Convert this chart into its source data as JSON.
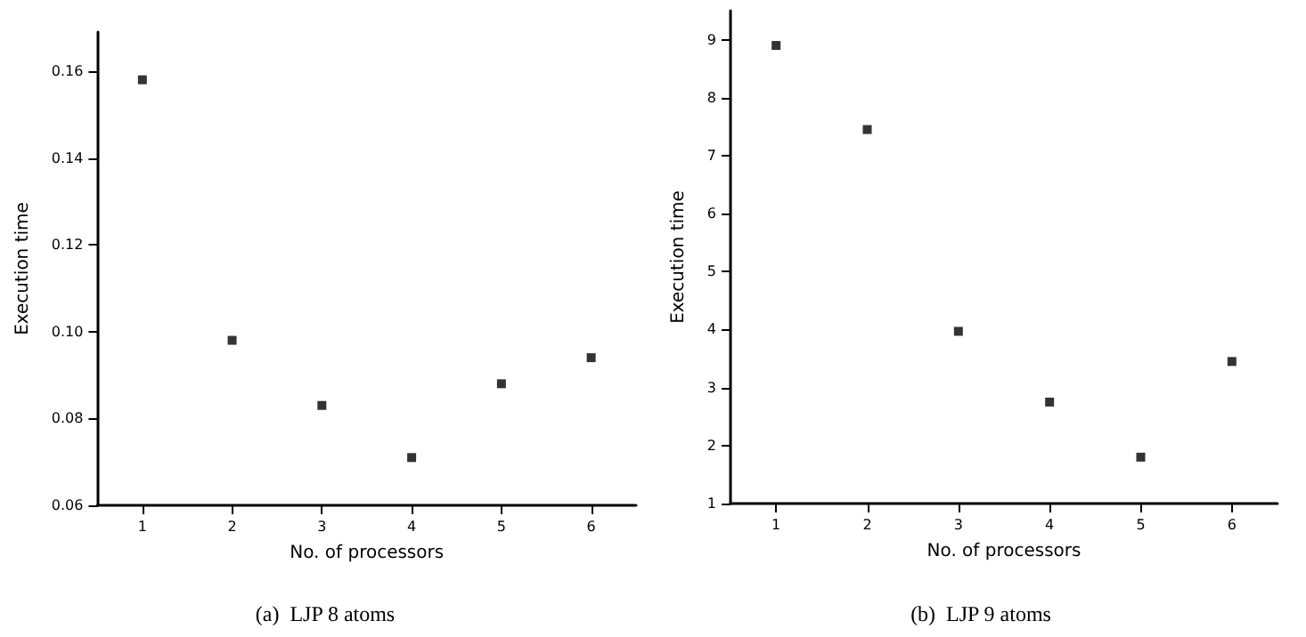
{
  "chart_data": [
    {
      "type": "scatter",
      "title": "(a)  LJP 8 atoms",
      "xlabel": "No. of processors",
      "ylabel": "Execution time",
      "x": [
        1,
        2,
        3,
        4,
        5,
        6
      ],
      "series": [
        {
          "color": "#000000",
          "values": [
            0.158,
            0.098,
            0.083,
            0.071,
            0.088,
            0.094
          ]
        }
      ],
      "xlim": [
        0.5,
        6.5
      ],
      "xticks": [
        1,
        2,
        3,
        4,
        5,
        6
      ],
      "ylim": [
        0.06,
        0.169
      ],
      "yticks": [
        0.06,
        0.08,
        {
          "value": 0.1,
          "label": "0.10"
        },
        0.12,
        0.14,
        0.16
      ],
      "marker": "square",
      "grid": false
    },
    {
      "type": "scatter",
      "title": "(b)  LJP 9 atoms",
      "xlabel": "No. of processors",
      "ylabel": "Execution time",
      "x": [
        1,
        2,
        3,
        4,
        5,
        6
      ],
      "series": [
        {
          "color": "#000000",
          "values": [
            8.9,
            7.45,
            3.97,
            2.75,
            1.8,
            3.45
          ]
        }
      ],
      "xlim": [
        0.5,
        6.5
      ],
      "xticks": [
        1,
        2,
        3,
        4,
        5,
        6
      ],
      "ylim": [
        1,
        9.5
      ],
      "yticks": [
        1,
        2,
        3,
        4,
        5,
        6,
        7,
        8,
        9
      ],
      "marker": "square",
      "grid": false
    }
  ]
}
